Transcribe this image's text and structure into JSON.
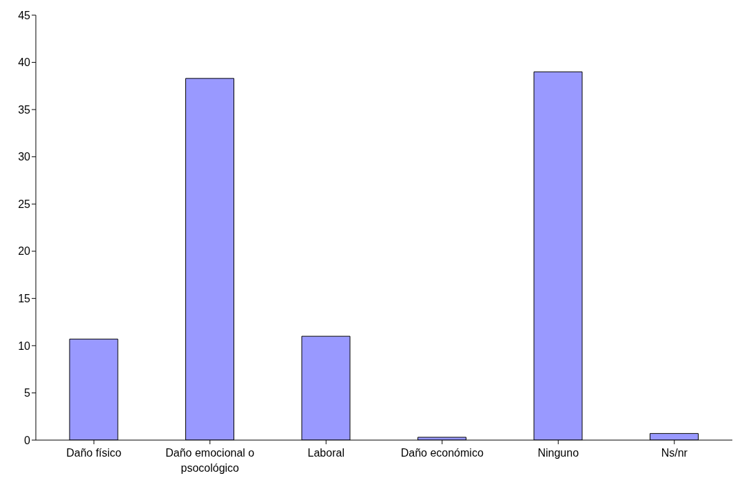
{
  "chart_data": {
    "type": "bar",
    "categories": [
      "Daño físico",
      "Daño emocional o psocológico",
      "Laboral",
      "Daño económico",
      "Ninguno",
      "Ns/nr"
    ],
    "values": [
      10.7,
      38.3,
      11.0,
      0.3,
      39.0,
      0.7
    ],
    "color": "#9999ff",
    "ylim": [
      0,
      45
    ],
    "yticks": [
      0,
      5,
      10,
      15,
      20,
      25,
      30,
      35,
      40,
      45
    ],
    "grid": false,
    "legend": false
  }
}
